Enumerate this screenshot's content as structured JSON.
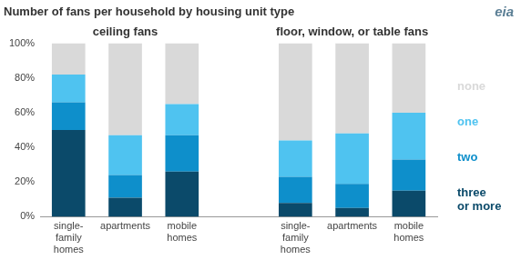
{
  "chart_data": {
    "type": "bar",
    "title": "Number of fans per household by housing unit type",
    "categories": [
      "single-family homes",
      "apartments",
      "mobile homes",
      null,
      "single-family homes",
      "apartments",
      "mobile homes"
    ],
    "series": [
      {
        "name": "three or more",
        "color": "#0b4a6a",
        "values": [
          50,
          11,
          26,
          null,
          8,
          5,
          15
        ]
      },
      {
        "name": "two",
        "color": "#0e8fcb",
        "values": [
          16,
          13,
          21,
          null,
          15,
          14,
          18
        ]
      },
      {
        "name": "one",
        "color": "#4fc3f0",
        "values": [
          16,
          23,
          18,
          null,
          21,
          29,
          27
        ]
      },
      {
        "name": "none",
        "color": "#d9d9d9",
        "values": [
          18,
          53,
          35,
          null,
          56,
          52,
          40
        ]
      }
    ],
    "ylim": [
      0,
      100
    ],
    "yticks": [
      {
        "value": 0,
        "label": "0%"
      },
      {
        "value": 20,
        "label": "20%"
      },
      {
        "value": 40,
        "label": "40%"
      },
      {
        "value": 60,
        "label": "60%"
      },
      {
        "value": 80,
        "label": "80%"
      },
      {
        "value": 100,
        "label": "100%"
      }
    ],
    "stacked": true,
    "grid": false,
    "legend": "right",
    "annotations": [
      {
        "text": "ceiling fans"
      },
      {
        "text": "floor, window, or table fans"
      },
      {
        "text": "eia"
      }
    ]
  }
}
